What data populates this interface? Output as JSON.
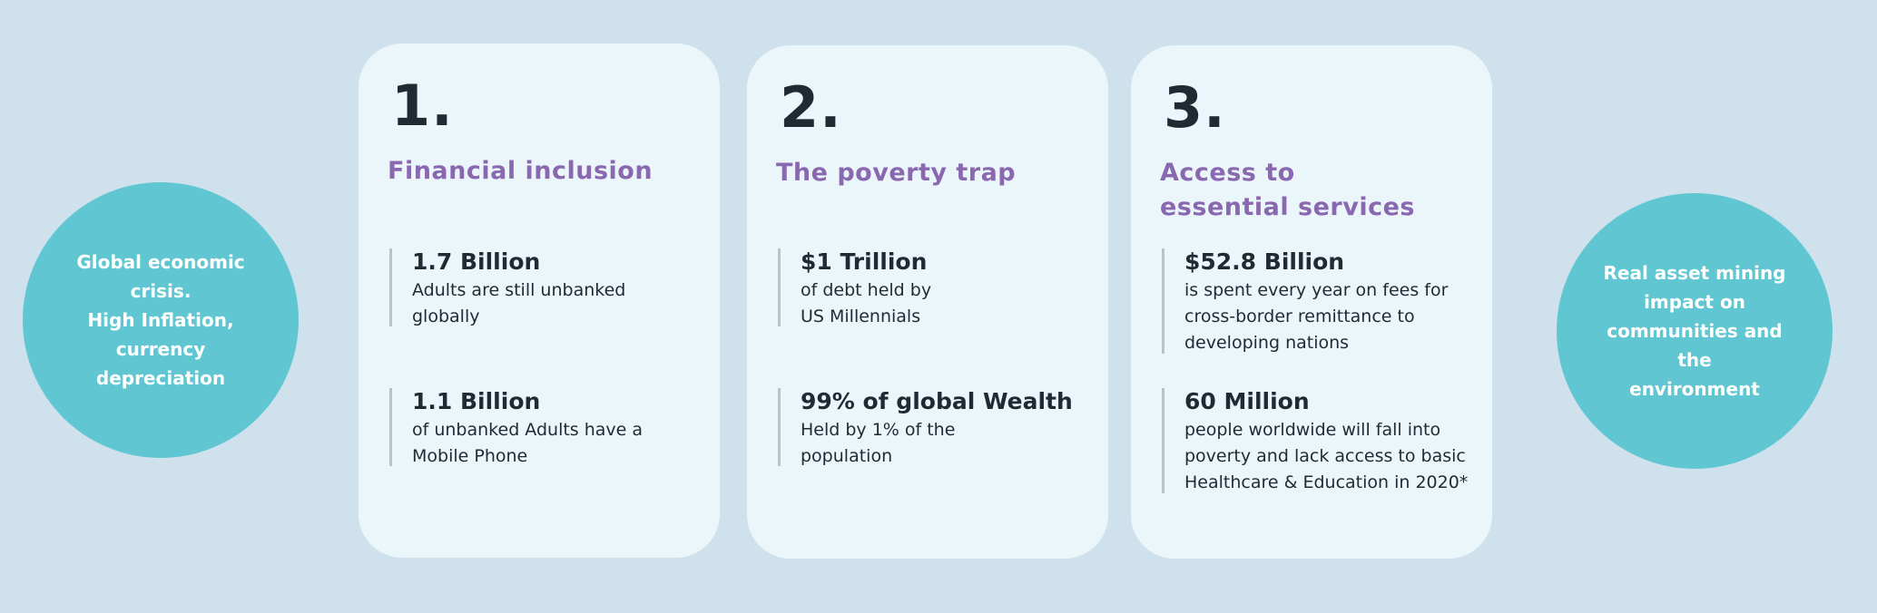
{
  "left_circle": {
    "text": "Global economic\ncrisis.\nHigh Inflation,\ncurrency\ndepreciation"
  },
  "right_circle": {
    "text": "Real asset  mining\nimpact on\ncommunities and the\nenvironment"
  },
  "cards": [
    {
      "number": "1.",
      "heading": "Financial inclusion",
      "stats": [
        {
          "title": "1.7 Billion",
          "text": "Adults are still unbanked globally"
        },
        {
          "title": "1.1 Billion",
          "text": "of unbanked Adults have a Mobile Phone"
        }
      ]
    },
    {
      "number": "2.",
      "heading": "The poverty trap",
      "stats": [
        {
          "title": "$1 Trillion",
          "text": "of debt held by US Millennials"
        },
        {
          "title": "99% of global Wealth",
          "text": "Held by 1% of the population"
        }
      ]
    },
    {
      "number": "3.",
      "heading": "Access to essential services",
      "stats": [
        {
          "title": "$52.8 Billion",
          "text": "is spent every year on fees for cross-border remittance to developing nations"
        },
        {
          "title": "60 Million",
          "text": "people worldwide will fall into poverty and lack access to basic Healthcare & Education in 2020*"
        }
      ]
    }
  ],
  "colors": {
    "background": "#cfe1ec",
    "card": "#ebf6fb",
    "circle": "#60c7d2",
    "heading": "#8a68b0",
    "text": "#1f2a33"
  }
}
